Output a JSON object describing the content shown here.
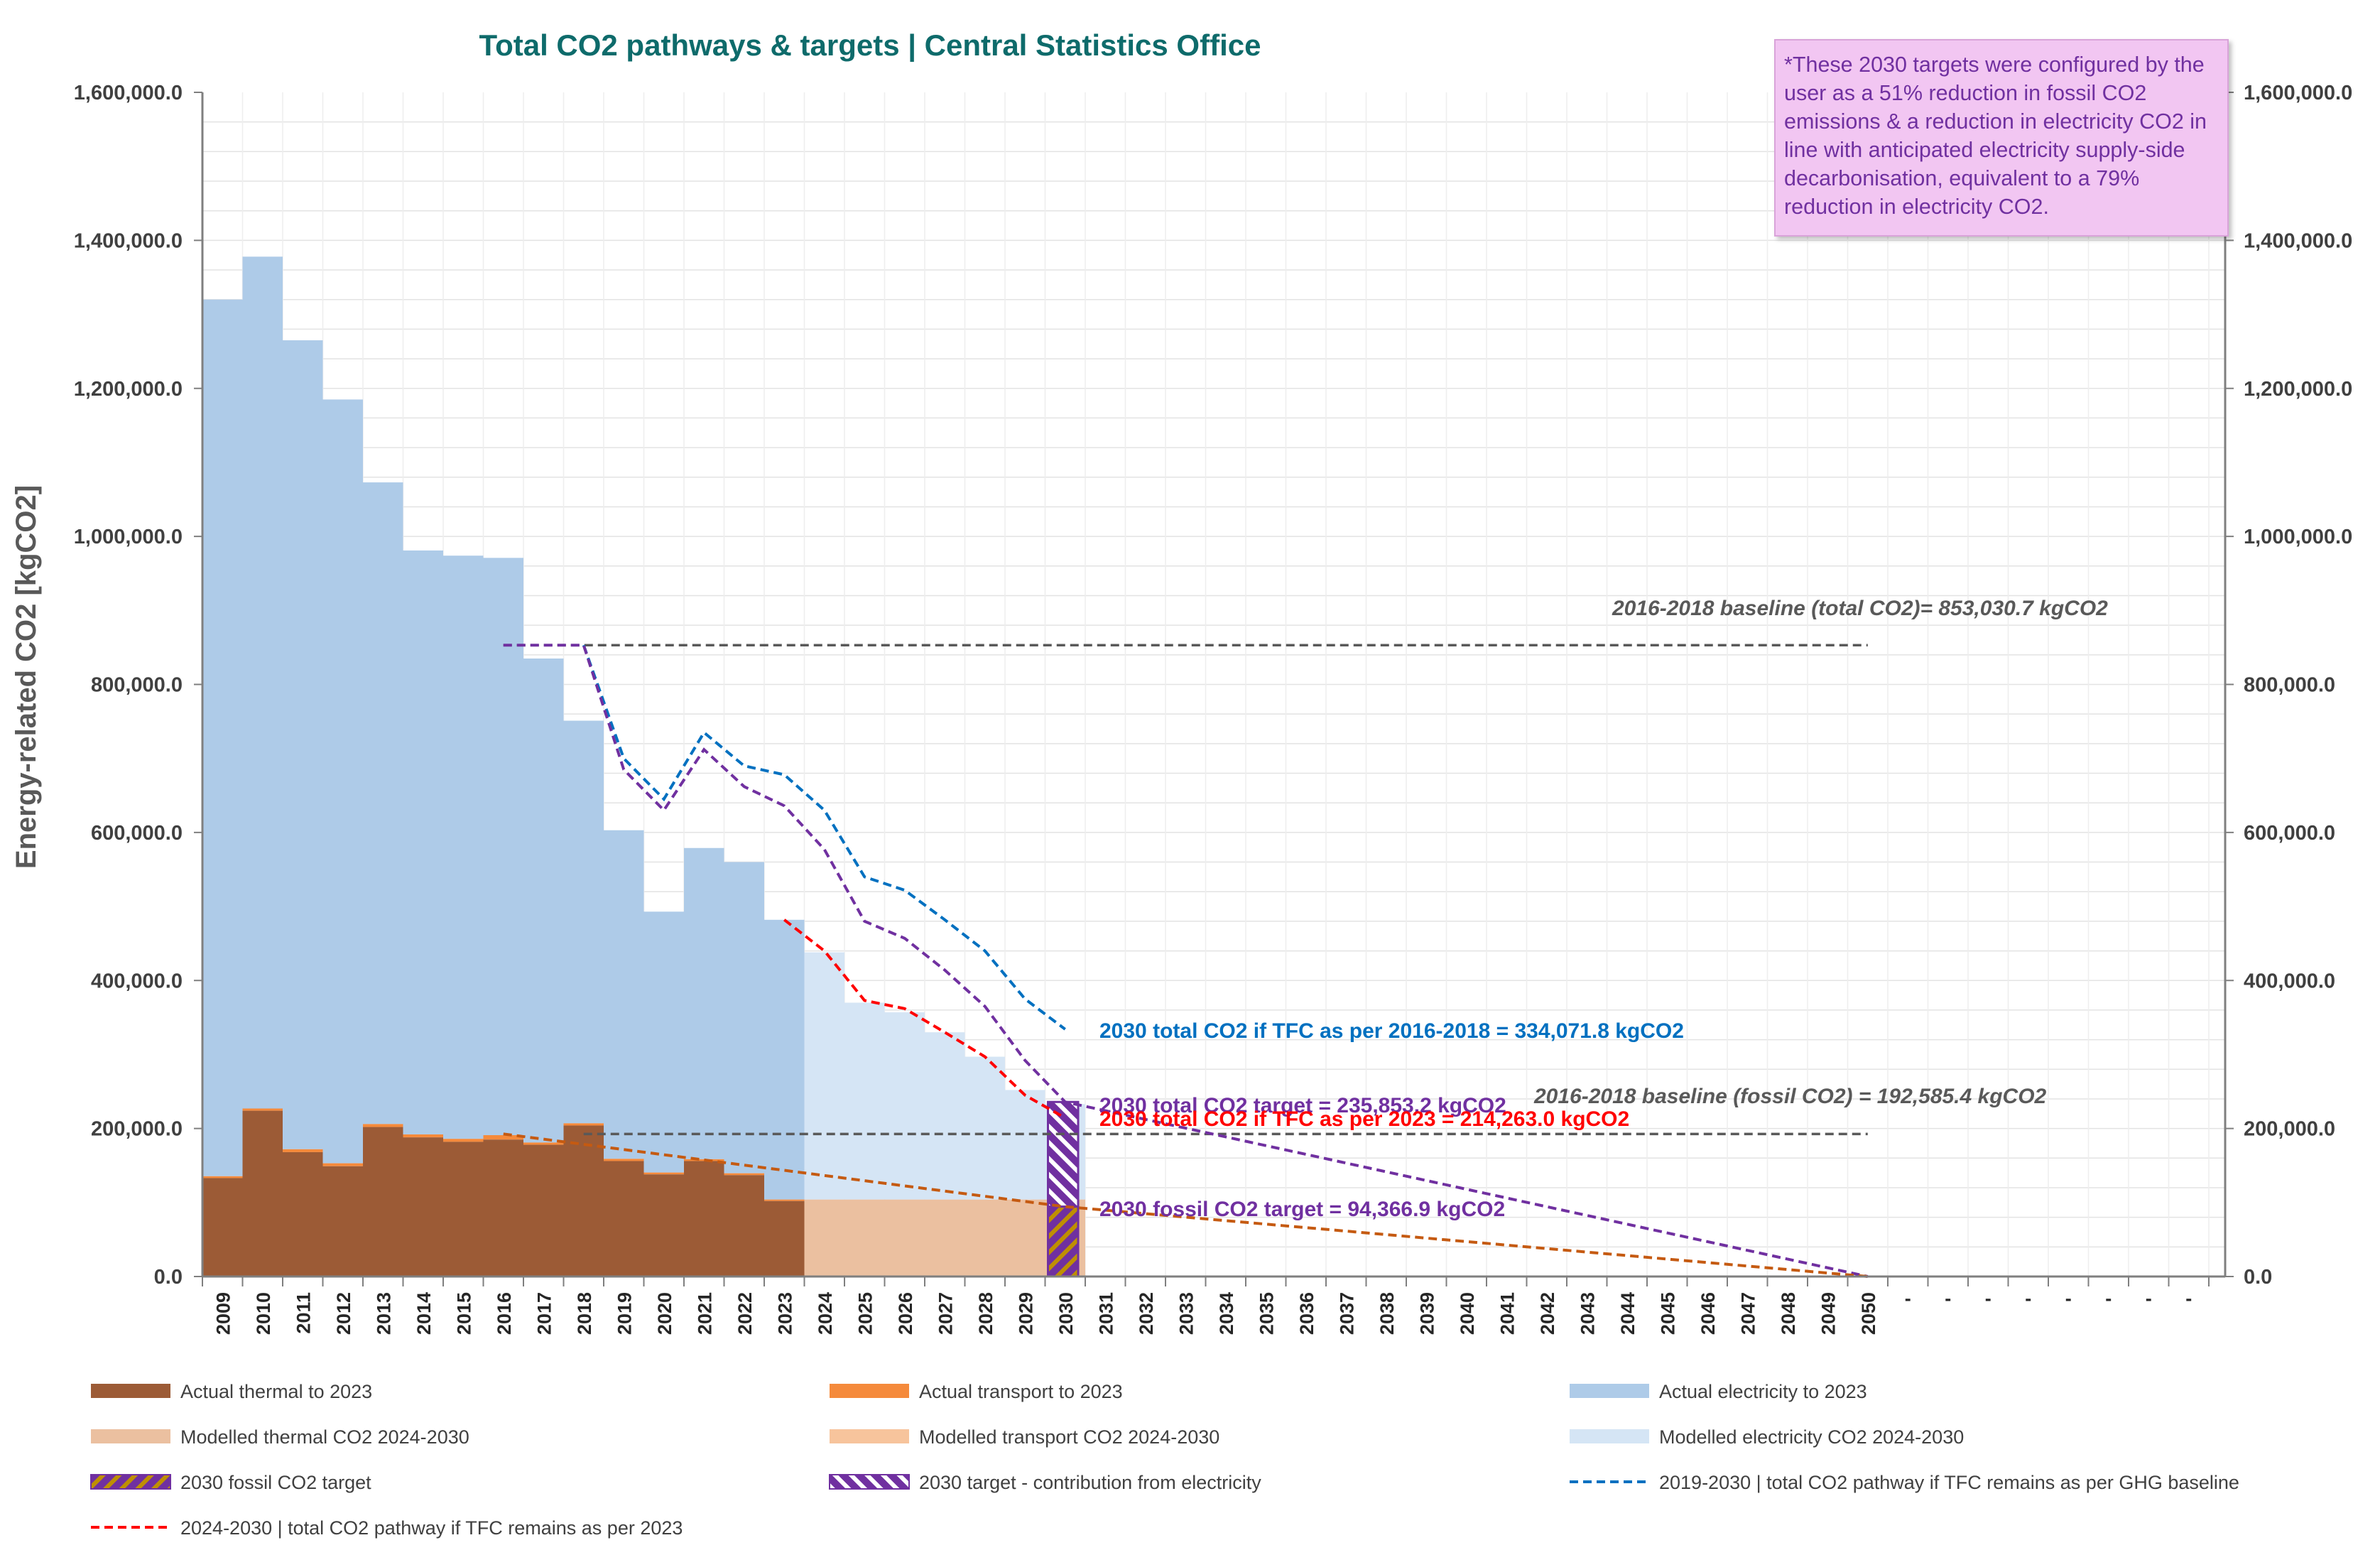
{
  "chart_data": {
    "type": "bar",
    "title": "Total CO2 pathways & targets  |  Central Statistics Office",
    "ylabel": "Energy-related CO2 [kgCO2]",
    "ylim": [
      0,
      1600000
    ],
    "yticks": [
      "0.0",
      "200,000.0",
      "400,000.0",
      "600,000.0",
      "800,000.0",
      "1,000,000.0",
      "1,200,000.0",
      "1,400,000.0",
      "1,600,000.0"
    ],
    "ytick_values": [
      0,
      200000,
      400000,
      600000,
      800000,
      1000000,
      1200000,
      1400000,
      1600000
    ],
    "years": [
      "2009",
      "2010",
      "2011",
      "2012",
      "2013",
      "2014",
      "2015",
      "2016",
      "2017",
      "2018",
      "2019",
      "2020",
      "2021",
      "2022",
      "2023",
      "2024",
      "2025",
      "2026",
      "2027",
      "2028",
      "2029",
      "2030",
      "2031",
      "2032",
      "2033",
      "2034",
      "2035",
      "2036",
      "2037",
      "2038",
      "2039",
      "2040",
      "2041",
      "2042",
      "2043",
      "2044",
      "2045",
      "2046",
      "2047",
      "2048",
      "2049",
      "2050"
    ],
    "extra_tick_count": 8,
    "grid": true,
    "legend_position": "bottom",
    "colors": {
      "actual_thermal": "#9c5b36",
      "actual_transport": "#f58a3b",
      "actual_electricity": "#aecbe8",
      "modelled_thermal": "#ebc0a0",
      "modelled_transport": "#f7c49c",
      "modelled_electricity": "#d5e5f5",
      "target_purple": "#7030a0",
      "target_gold": "#bf8f00",
      "baseline_blue": "#0070c0",
      "red": "#ff0000",
      "grey": "#595959",
      "orange_dash": "#c55a11"
    },
    "series": {
      "actual_total": [
        1320000,
        1378000,
        1265000,
        1185000,
        1073000,
        981000,
        974000,
        971000,
        835000,
        751000,
        603000,
        493000,
        579000,
        560000,
        482000
      ],
      "actual_thermal": [
        133000,
        224000,
        168000,
        149000,
        202000,
        188000,
        182000,
        185000,
        178000,
        204000,
        156000,
        138000,
        156000,
        137000,
        102000
      ],
      "actual_transport": [
        2500,
        3000,
        4000,
        4000,
        4000,
        4000,
        4000,
        6000,
        3000,
        3000,
        3000,
        2500,
        2500,
        2500,
        2000
      ],
      "modelled_total": [
        438000,
        370000,
        357000,
        330000,
        297000,
        252000,
        233000
      ],
      "modelled_thermal": [
        104000,
        104000,
        104000,
        104000,
        104000,
        104000,
        104000
      ]
    },
    "lines": [
      {
        "name": "2019-2030 | total CO2 pathway if TFC remains as per GHG baseline",
        "x": [
          2018,
          2019,
          2020,
          2021,
          2022,
          2023,
          2024,
          2025,
          2026,
          2027,
          2028,
          2029,
          2030
        ],
        "y": [
          853000,
          700000,
          645000,
          735000,
          690000,
          678000,
          630000,
          540000,
          522000,
          482000,
          440000,
          375000,
          334072
        ]
      },
      {
        "name": "total CO2 target pathway",
        "x": [
          2016,
          2018,
          2019,
          2020,
          2021,
          2022,
          2023,
          2024,
          2025,
          2026,
          2027,
          2028,
          2029,
          2030,
          2050
        ],
        "y": [
          853000,
          853000,
          685000,
          630000,
          712000,
          662000,
          636000,
          577000,
          480000,
          457000,
          414000,
          365000,
          292000,
          235853,
          0
        ]
      },
      {
        "name": "2024-2030 | total CO2 pathway if TFC remains as per 2023",
        "x": [
          2023,
          2024,
          2025,
          2026,
          2027,
          2028,
          2029,
          2030
        ],
        "y": [
          482000,
          440000,
          373000,
          362000,
          330000,
          297000,
          245000,
          214263
        ]
      },
      {
        "name": "fossil CO2 target pathway",
        "x": [
          2016,
          2030,
          2050
        ],
        "y": [
          192585,
          94367,
          0
        ]
      }
    ],
    "baselines": [
      {
        "label": "2016-2018 baseline (total CO2)= 853,030.7 kgCO2",
        "value": 853030.7,
        "x_from": 2016,
        "x_to": 2050
      },
      {
        "label": "2016-2018 baseline (fossil CO2) = 192,585.4 kgCO2",
        "value": 192585.4,
        "x_from": 2018,
        "x_to": 2050
      }
    ],
    "target_2030": {
      "total": 235853.2,
      "fossil": 94366.9
    },
    "annotations": [
      {
        "text": "2030 total CO2 if TFC as per 2016-2018 = 334,071.8 kgCO2",
        "color": "#0070c0"
      },
      {
        "text": "2030 total CO2 target = 235,853.2 kgCO2",
        "color": "#7030a0"
      },
      {
        "text": "2030 total CO2 if TFC as per 2023 = 214,263.0 kgCO2",
        "color": "#ff0000"
      },
      {
        "text": "2030 fossil CO2 target = 94,366.9 kgCO2",
        "color": "#7030a0"
      }
    ],
    "note": "*These 2030 targets were configured by the user as a 51% reduction in fossil CO2 emissions & a reduction in electricity CO2 in line with anticipated electricity supply-side decarbonisation, equivalent to a 79% reduction in electricity CO2.",
    "legend": [
      {
        "label": "Actual thermal to 2023",
        "kind": "bar",
        "color": "#9c5b36"
      },
      {
        "label": "Actual transport to 2023",
        "kind": "bar",
        "color": "#f58a3b"
      },
      {
        "label": "Actual electricity to 2023",
        "kind": "bar",
        "color": "#aecbe8"
      },
      {
        "label": "Modelled thermal CO2 2024-2030",
        "kind": "bar",
        "color": "#ebc0a0"
      },
      {
        "label": "Modelled transport CO2 2024-2030",
        "kind": "bar",
        "color": "#f7c49c"
      },
      {
        "label": "Modelled electricity CO2 2024-2030",
        "kind": "bar",
        "color": "#d5e5f5"
      },
      {
        "label": "2030 fossil CO2 target",
        "kind": "hatch-gold",
        "color": "#7030a0"
      },
      {
        "label": "2030 target - contribution from electricity",
        "kind": "hatch-white",
        "color": "#7030a0"
      },
      {
        "label": "2019-2030 | total CO2 pathway if TFC remains as per GHG baseline",
        "kind": "dash",
        "color": "#0070c0"
      },
      {
        "label": "2024-2030 | total CO2 pathway if TFC remains as per 2023",
        "kind": "dash",
        "color": "#ff0000"
      }
    ]
  }
}
